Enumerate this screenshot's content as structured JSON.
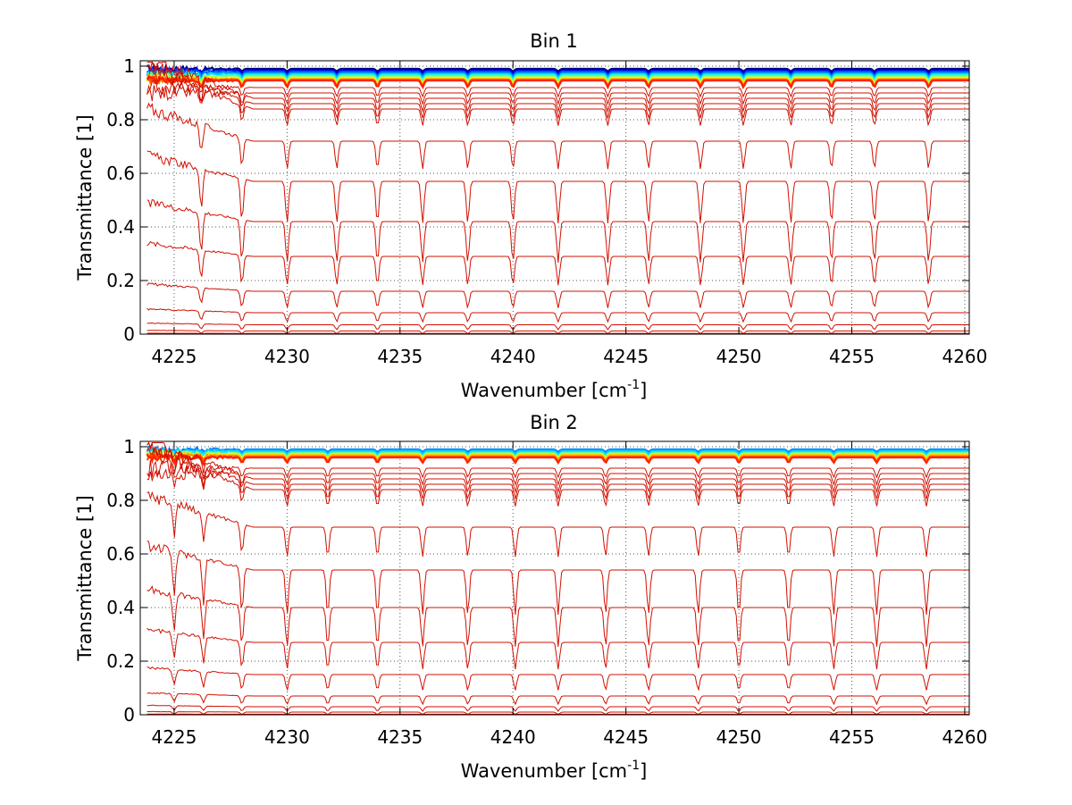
{
  "chart_data": [
    {
      "type": "line",
      "title": "Bin 1",
      "xlabel": "Wavenumber [cm",
      "xlabel_sup": "-1",
      "xlabel_suffix": "]",
      "ylabel": "Transmittance [1]",
      "xlim": [
        4223.5,
        4260.2
      ],
      "ylim": [
        0,
        1.02
      ],
      "xticks": [
        4225,
        4230,
        4235,
        4240,
        4245,
        4250,
        4255,
        4260
      ],
      "xtick_labels": [
        "4225",
        "4230",
        "4235",
        "4240",
        "4245",
        "4250",
        "4255",
        "4260"
      ],
      "yticks": [
        0,
        0.2,
        0.4,
        0.6,
        0.8,
        1
      ],
      "ytick_labels": [
        "0",
        "0.2",
        "0.4",
        "0.6",
        "0.8",
        "1"
      ],
      "grid": true,
      "legend": "none",
      "absorption_lines": [
        4226.2,
        4228.0,
        4230.0,
        4232.2,
        4234.0,
        4236.0,
        4238.0,
        4240.0,
        4242.0,
        4244.2,
        4246.0,
        4248.3,
        4250.2,
        4252.3,
        4254.1,
        4256.0,
        4258.4
      ],
      "series_groups": [
        {
          "name": "upper",
          "levels": [
            0.99,
            0.985,
            0.98,
            0.975,
            0.97,
            0.965
          ],
          "colors": [
            "#00007f",
            "#0000d0",
            "#0040ff",
            "#0090ff",
            "#00dfff",
            "#40ffbf"
          ]
        },
        {
          "name": "middle",
          "levels": [
            0.96,
            0.955,
            0.952,
            0.95,
            0.948,
            0.946
          ],
          "colors": [
            "#9fff60",
            "#efff10",
            "#ffc000",
            "#ff8000",
            "#ff4800",
            "#ff2000"
          ]
        },
        {
          "name": "lower",
          "levels": [
            0.92,
            0.9,
            0.88,
            0.86,
            0.84,
            0.72,
            0.57,
            0.42,
            0.29,
            0.16,
            0.08,
            0.035,
            0.012,
            0.003
          ],
          "colors": [
            "#d01000"
          ]
        }
      ]
    },
    {
      "type": "line",
      "title": "Bin 2",
      "xlabel": "Wavenumber [cm",
      "xlabel_sup": "-1",
      "xlabel_suffix": "]",
      "ylabel": "Transmittance [1]",
      "xlim": [
        4223.5,
        4260.2
      ],
      "ylim": [
        0,
        1.02
      ],
      "xticks": [
        4225,
        4230,
        4235,
        4240,
        4245,
        4250,
        4255,
        4260
      ],
      "xtick_labels": [
        "4225",
        "4230",
        "4235",
        "4240",
        "4245",
        "4250",
        "4255",
        "4260"
      ],
      "yticks": [
        0,
        0.2,
        0.4,
        0.6,
        0.8,
        1
      ],
      "ytick_labels": [
        "0",
        "0.2",
        "0.4",
        "0.6",
        "0.8",
        "1"
      ],
      "grid": true,
      "legend": "none",
      "absorption_lines": [
        4225.0,
        4226.3,
        4228.0,
        4230.0,
        4231.8,
        4234.0,
        4236.0,
        4238.0,
        4240.1,
        4242.0,
        4244.1,
        4246.0,
        4248.2,
        4250.0,
        4252.2,
        4254.2,
        4256.1,
        4258.3
      ],
      "series_groups": [
        {
          "name": "upper",
          "levels": [
            0.99,
            0.985,
            0.98
          ],
          "colors": [
            "#0080ff",
            "#00c8ff",
            "#20e8e8"
          ]
        },
        {
          "name": "middle",
          "levels": [
            0.975,
            0.97,
            0.965,
            0.962,
            0.96
          ],
          "colors": [
            "#b0ff50",
            "#ffd000",
            "#ff9000",
            "#ff5000",
            "#ff2400"
          ]
        },
        {
          "name": "lower",
          "levels": [
            0.92,
            0.9,
            0.88,
            0.86,
            0.84,
            0.7,
            0.54,
            0.4,
            0.27,
            0.15,
            0.07,
            0.03,
            0.01,
            0.002
          ],
          "colors": [
            "#d01000"
          ]
        }
      ]
    }
  ]
}
